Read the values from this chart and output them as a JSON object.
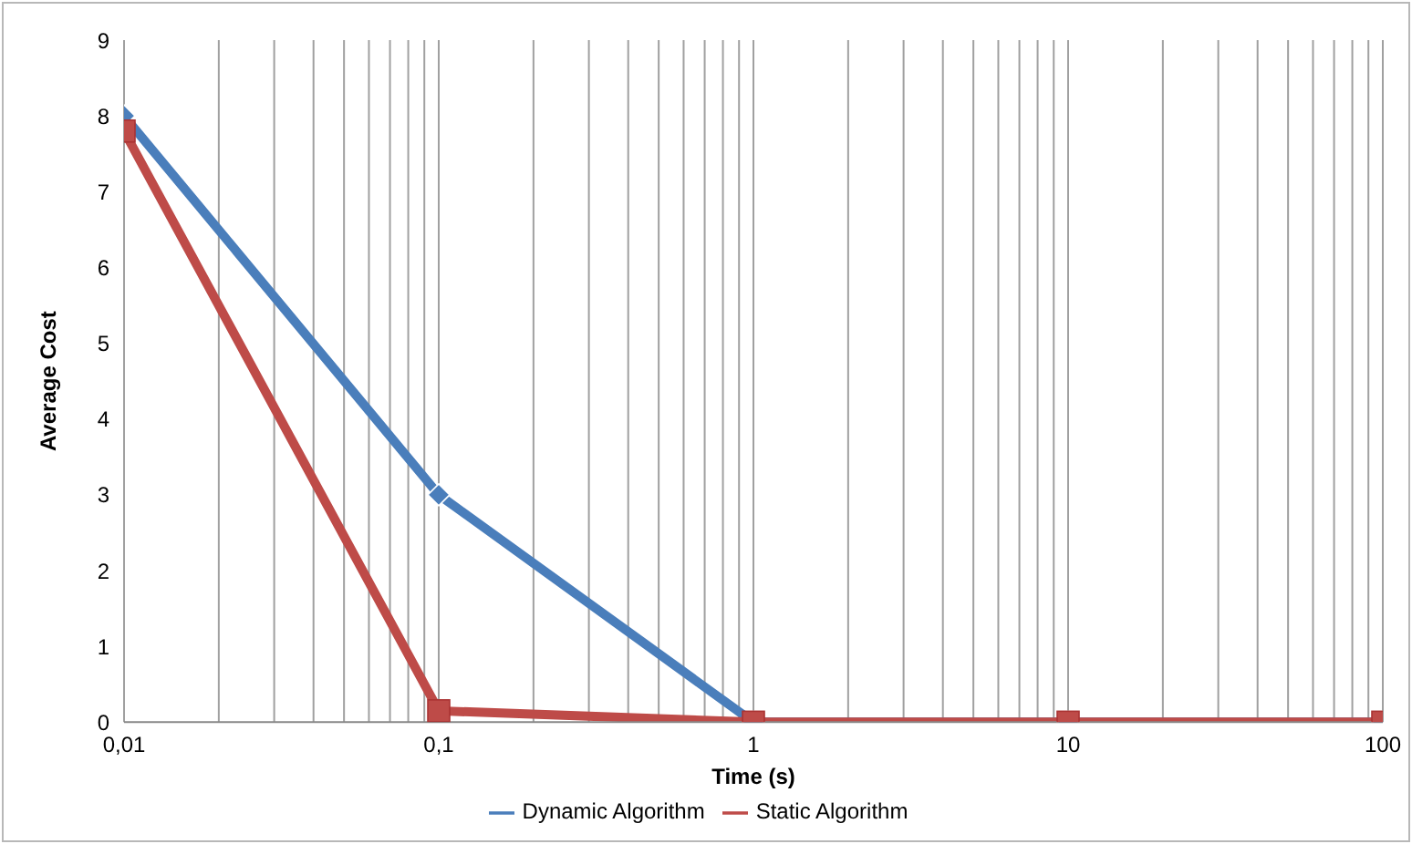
{
  "chart_data": {
    "type": "line",
    "xlabel": "Time (s)",
    "ylabel": "Average Cost",
    "x": [
      0.01,
      0.1,
      1,
      10,
      100
    ],
    "series": [
      {
        "name": "Dynamic Algorithm",
        "color": "#4a7ebb",
        "values": [
          8,
          3,
          0,
          0,
          0
        ],
        "marker": "diamond"
      },
      {
        "name": "Static Algorithm",
        "color": "#be4b48",
        "values": [
          7.8,
          0.15,
          0,
          0,
          0
        ],
        "marker": "square"
      }
    ],
    "log": "x",
    "xlim": [
      0.01,
      100
    ],
    "xticks": [
      {
        "value": 0.01,
        "label": "0,01"
      },
      {
        "value": 0.02,
        "label": null
      },
      {
        "value": 0.03,
        "label": null
      },
      {
        "value": 0.04,
        "label": null
      },
      {
        "value": 0.05,
        "label": null
      },
      {
        "value": 0.06,
        "label": null
      },
      {
        "value": 0.07,
        "label": null
      },
      {
        "value": 0.08,
        "label": null
      },
      {
        "value": 0.09,
        "label": null
      },
      {
        "value": 0.1,
        "label": "0,1"
      },
      {
        "value": 0.2,
        "label": null
      },
      {
        "value": 0.3,
        "label": null
      },
      {
        "value": 0.4,
        "label": null
      },
      {
        "value": 0.5,
        "label": null
      },
      {
        "value": 0.6,
        "label": null
      },
      {
        "value": 0.7,
        "label": null
      },
      {
        "value": 0.8,
        "label": null
      },
      {
        "value": 0.9,
        "label": null
      },
      1,
      {
        "value": 2,
        "label": null
      },
      {
        "value": 3,
        "label": null
      },
      {
        "value": 4,
        "label": null
      },
      {
        "value": 5,
        "label": null
      },
      {
        "value": 6,
        "label": null
      },
      {
        "value": 7,
        "label": null
      },
      {
        "value": 8,
        "label": null
      },
      {
        "value": 9,
        "label": null
      },
      10,
      {
        "value": 20,
        "label": null
      },
      {
        "value": 30,
        "label": null
      },
      {
        "value": 40,
        "label": null
      },
      {
        "value": 50,
        "label": null
      },
      {
        "value": 60,
        "label": null
      },
      {
        "value": 70,
        "label": null
      },
      {
        "value": 80,
        "label": null
      },
      {
        "value": 90,
        "label": null
      },
      100
    ],
    "ylim": [
      0,
      9
    ],
    "yticks": [
      0,
      1,
      2,
      3,
      4,
      5,
      6,
      7,
      8,
      9
    ],
    "grid": "x",
    "legend": "bottom",
    "line_style": "solid"
  }
}
